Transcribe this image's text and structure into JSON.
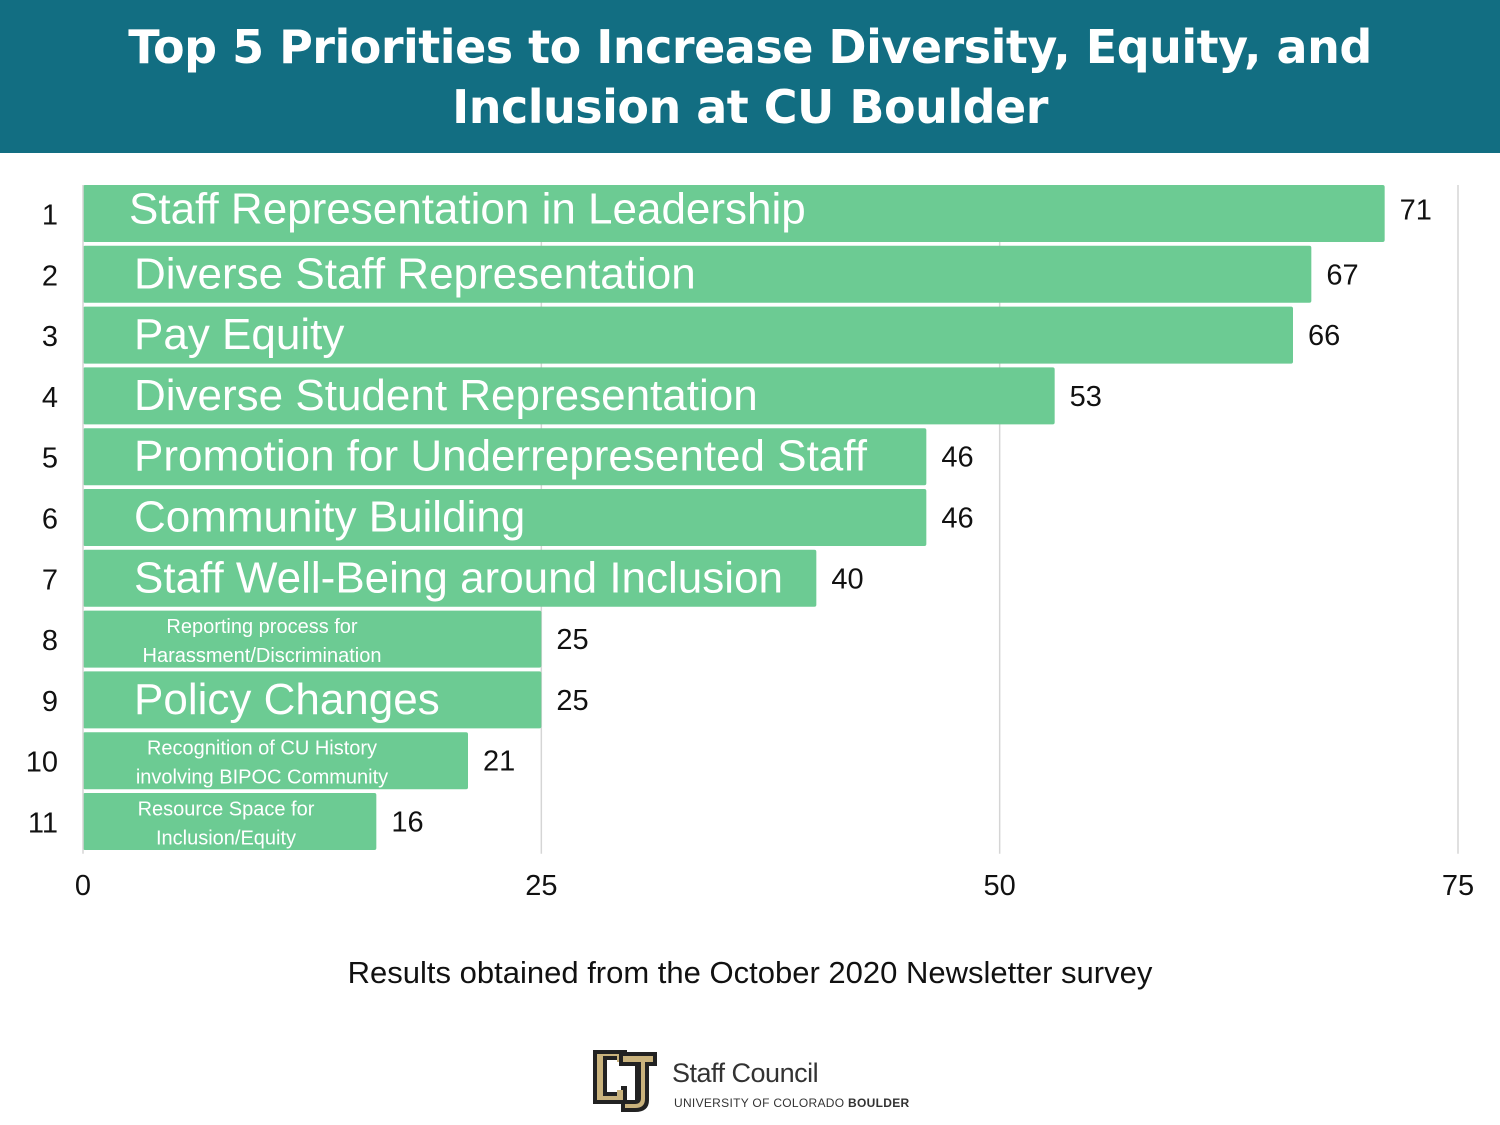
{
  "header": {
    "title": "Top 5 Priorities to Increase Diversity, Equity, and Inclusion at CU Boulder"
  },
  "chart_data": {
    "type": "bar",
    "orientation": "horizontal",
    "title": "Top 5 Priorities to Increase Diversity, Equity, and Inclusion at CU Boulder",
    "ranks": [
      "1",
      "2",
      "3",
      "4",
      "5",
      "6",
      "7",
      "8",
      "9",
      "10",
      "11"
    ],
    "categories": [
      "Staff Representation in Leadership",
      "Diverse Staff Representation",
      "Pay Equity",
      "Diverse Student Representation",
      "Promotion for Underrepresented Staff",
      "Community Building",
      "Staff Well-Being around Inclusion",
      "Reporting process for Harassment/Discrimination",
      "Policy Changes",
      "Recognition of CU History involving BIPOC Community",
      "Resource Space for Inclusion/Equity"
    ],
    "category_lines": [
      [
        "Staff Representation in Leadership"
      ],
      [
        "Diverse Staff Representation"
      ],
      [
        "Pay Equity"
      ],
      [
        "Diverse Student Representation"
      ],
      [
        "Promotion for Underrepresented Staff"
      ],
      [
        "Community Building"
      ],
      [
        "Staff Well-Being around Inclusion"
      ],
      [
        "Reporting process for",
        "Harassment/Discrimination"
      ],
      [
        "Policy Changes"
      ],
      [
        "Recognition of CU History",
        "involving BIPOC Community"
      ],
      [
        "Resource Space for",
        "Inclusion/Equity"
      ]
    ],
    "values": [
      71,
      67,
      66,
      53,
      46,
      46,
      40,
      25,
      25,
      21,
      16
    ],
    "xlim": [
      0,
      75
    ],
    "xticks": [
      0,
      25,
      50,
      75
    ],
    "grid": true,
    "bar_color": "#6ccb93",
    "grid_color": "#d5d5d5"
  },
  "footnote": "Results obtained from the October 2020 Newsletter survey",
  "logo": {
    "title": "Staff Council",
    "subtitle_regular": "UNIVERSITY OF COLORADO ",
    "subtitle_bold": "BOULDER",
    "icon": "cu-logo-icon",
    "gold_color": "#c9b27c",
    "dark_color": "#222222"
  }
}
